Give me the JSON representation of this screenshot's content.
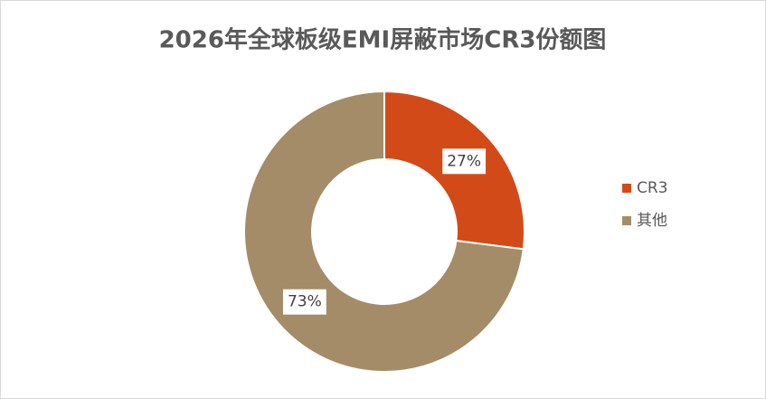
{
  "chart_data": {
    "type": "donut",
    "title": "2026年全球板级EMI屏蔽市场CR3份额图",
    "categories": [
      "CR3",
      "其他"
    ],
    "values": [
      27,
      73
    ],
    "value_labels": [
      "27%",
      "73%"
    ],
    "colors": [
      "#d24a18",
      "#a48c68"
    ],
    "legend": "right"
  }
}
